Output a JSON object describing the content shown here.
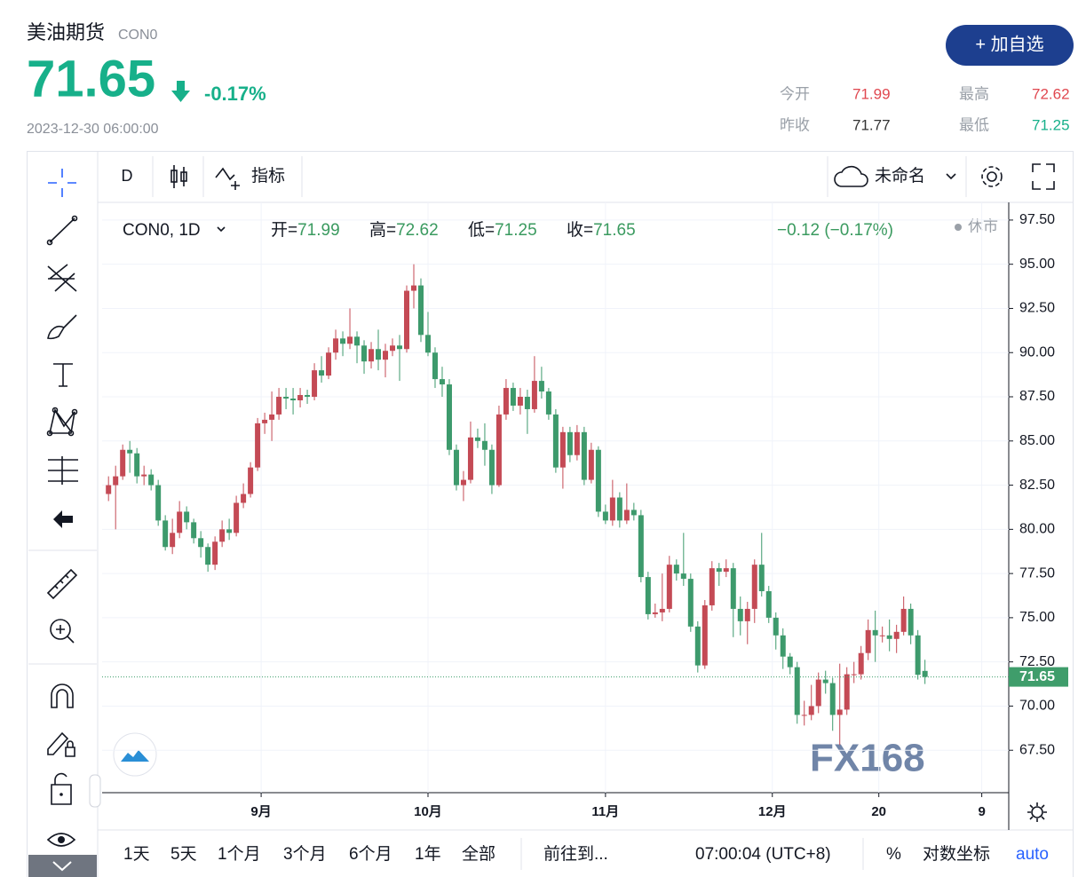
{
  "header": {
    "name": "美油期货",
    "code": "CON0",
    "price": "71.65",
    "change": "-0.17%",
    "time": "2023-12-30 06:00:00",
    "button": "+ 加自选",
    "stats": [
      {
        "label": "今开",
        "value": "71.99"
      },
      {
        "label": "最高",
        "value": "72.62"
      },
      {
        "label": "昨收",
        "value": "71.77"
      },
      {
        "label": "最低",
        "value": "71.25"
      }
    ]
  },
  "toolbar": {
    "interval": "D",
    "indicators": "指标",
    "layout": "未命名"
  },
  "chart_data": {
    "type": "candlestick",
    "symbol": "CON0, 1D",
    "legend": [
      {
        "label": "开=",
        "value": "71.99"
      },
      {
        "label": "高=",
        "value": "72.62"
      },
      {
        "label": "低=",
        "value": "71.25"
      },
      {
        "label": "收=",
        "value": "71.65"
      }
    ],
    "change": "−0.12 (−0.17%)",
    "status": "休市",
    "watermark": "FX168",
    "open": [
      82.0,
      82.5,
      83.0,
      84.5,
      84.3,
      83.0,
      83.1,
      82.5,
      80.5,
      79.0,
      79.8,
      81.0,
      80.4,
      79.5,
      79.0,
      78.0,
      79.3,
      80.0,
      79.8,
      81.5,
      82.0,
      83.5,
      86.0,
      86.2,
      86.5,
      87.5,
      87.4,
      87.3,
      87.6,
      87.5,
      89.0,
      88.7,
      90.0,
      90.8,
      90.5,
      90.9,
      90.4,
      89.5,
      90.2,
      89.6,
      90.1,
      90.4,
      90.2,
      93.5,
      93.8,
      91.0,
      90.0,
      88.5,
      88.2,
      84.5,
      82.5,
      82.8,
      85.2,
      85.0,
      84.5,
      82.5,
      86.5,
      88.0,
      87.0,
      87.5,
      86.8,
      88.4,
      87.8,
      86.5,
      83.5,
      85.5,
      84.2,
      85.5,
      82.8,
      84.5,
      81.0,
      80.5,
      81.8,
      80.5,
      81.1,
      80.8,
      77.3,
      75.2,
      75.3,
      75.5,
      78.0,
      77.5,
      77.2,
      74.5,
      72.3,
      75.7,
      77.8,
      77.6,
      77.8,
      75.5,
      74.8,
      75.5,
      78.0,
      76.5,
      75.0,
      74.0,
      72.8,
      72.2,
      69.5,
      69.5,
      70.0,
      71.5,
      71.3,
      69.5,
      69.8,
      71.8,
      71.8,
      73.0,
      74.3,
      74.0,
      74.0,
      73.8,
      74.2,
      75.5,
      74.0,
      71.99
    ],
    "high": [
      83.0,
      83.6,
      84.8,
      85.0,
      84.6,
      83.6,
      83.4,
      82.8,
      80.8,
      80.6,
      81.6,
      81.3,
      80.6,
      79.9,
      79.2,
      79.6,
      80.5,
      80.6,
      81.9,
      82.6,
      83.8,
      86.3,
      86.6,
      87.8,
      88.0,
      88.0,
      88.0,
      88.0,
      87.9,
      89.4,
      89.8,
      90.3,
      91.3,
      91.2,
      92.5,
      91.2,
      90.7,
      90.6,
      91.3,
      90.5,
      90.8,
      91.0,
      93.8,
      95.0,
      94.2,
      92.3,
      90.3,
      89.2,
      88.5,
      84.8,
      83.3,
      86.1,
      85.7,
      86.0,
      84.8,
      87.0,
      88.5,
      88.3,
      88.0,
      87.9,
      89.8,
      89.2,
      88.0,
      86.8,
      85.8,
      85.8,
      85.9,
      85.8,
      84.9,
      84.7,
      81.4,
      82.8,
      82.1,
      82.6,
      81.5,
      81.1,
      77.6,
      75.8,
      77.5,
      78.5,
      78.3,
      79.8,
      77.5,
      74.8,
      76.0,
      78.2,
      78.1,
      78.3,
      78.1,
      76.2,
      75.9,
      78.3,
      79.8,
      76.8,
      75.3,
      74.4,
      73.0,
      72.5,
      70.3,
      71.2,
      71.9,
      72.0,
      71.6,
      72.4,
      72.2,
      72.5,
      73.4,
      74.9,
      75.4,
      74.5,
      74.9,
      74.6,
      76.2,
      75.8,
      74.3,
      72.62
    ],
    "low": [
      81.6,
      80.0,
      82.8,
      83.2,
      82.6,
      82.5,
      82.2,
      80.2,
      78.8,
      78.6,
      79.5,
      80.0,
      79.2,
      78.4,
      77.6,
      77.7,
      79.0,
      79.4,
      79.6,
      81.2,
      81.8,
      83.3,
      85.4,
      85.0,
      86.2,
      86.8,
      86.5,
      86.9,
      87.1,
      87.3,
      88.3,
      88.5,
      89.6,
      89.8,
      90.2,
      89.4,
      88.8,
      89.1,
      89.0,
      88.6,
      89.8,
      88.4,
      90.0,
      92.5,
      90.6,
      89.8,
      88.0,
      87.5,
      84.2,
      82.2,
      81.6,
      82.6,
      84.6,
      83.6,
      82.0,
      82.4,
      86.2,
      86.7,
      86.5,
      85.4,
      86.6,
      87.4,
      86.2,
      83.2,
      82.3,
      83.8,
      83.9,
      82.5,
      82.6,
      80.7,
      80.3,
      80.2,
      80.1,
      80.3,
      80.5,
      77.0,
      74.9,
      75.0,
      74.8,
      75.3,
      77.1,
      76.8,
      74.2,
      71.9,
      72.1,
      75.4,
      76.8,
      77.3,
      73.9,
      74.0,
      73.5,
      74.7,
      76.2,
      74.7,
      73.2,
      72.1,
      71.8,
      69.0,
      68.9,
      69.2,
      69.6,
      70.7,
      68.6,
      67.8,
      69.5,
      71.3,
      71.5,
      72.6,
      72.5,
      73.6,
      73.1,
      73.0,
      74.0,
      73.5,
      71.5,
      71.25
    ],
    "close": [
      82.5,
      83.0,
      84.5,
      84.3,
      83.0,
      83.1,
      82.5,
      80.5,
      79.0,
      79.8,
      81.0,
      80.4,
      79.5,
      79.0,
      78.0,
      79.3,
      80.0,
      79.8,
      81.5,
      82.0,
      83.5,
      86.0,
      86.2,
      86.5,
      87.5,
      87.4,
      87.3,
      87.6,
      87.5,
      89.0,
      88.7,
      90.0,
      90.8,
      90.5,
      90.9,
      90.4,
      89.5,
      90.2,
      89.6,
      90.1,
      90.4,
      90.2,
      93.5,
      93.8,
      91.0,
      90.0,
      88.5,
      88.2,
      84.5,
      82.5,
      82.8,
      85.2,
      85.0,
      84.5,
      82.5,
      86.5,
      88.0,
      87.0,
      87.5,
      86.8,
      88.4,
      87.8,
      86.5,
      83.5,
      85.5,
      84.2,
      85.5,
      82.8,
      84.5,
      81.0,
      80.5,
      81.8,
      80.5,
      81.1,
      80.8,
      77.3,
      75.2,
      75.3,
      75.5,
      78.0,
      77.5,
      77.2,
      74.5,
      72.3,
      75.7,
      77.8,
      77.6,
      77.8,
      75.5,
      74.8,
      75.5,
      78.0,
      76.5,
      75.0,
      74.0,
      72.8,
      72.2,
      69.5,
      69.5,
      70.0,
      71.5,
      71.3,
      69.5,
      69.8,
      71.8,
      71.8,
      73.0,
      74.3,
      74.0,
      74.0,
      73.8,
      74.2,
      75.5,
      74.0,
      71.77,
      71.65
    ],
    "up_color": "#c44a55",
    "down_color": "#3d9a6c",
    "xlim": [
      -0.9,
      126.8
    ],
    "xticks": [
      {
        "value": 21.5,
        "label": "9月"
      },
      {
        "value": 45,
        "label": "10月"
      },
      {
        "value": 70,
        "label": "11月"
      },
      {
        "value": 93.5,
        "label": "12月"
      },
      {
        "value": 108.5,
        "label": "20"
      },
      {
        "value": 123,
        "label": "9"
      }
    ],
    "ylim": [
      65.1,
      98.5
    ],
    "yticks": [
      {
        "value": 67.5,
        "label": "67.50"
      },
      {
        "value": 70,
        "label": "70.00"
      },
      {
        "value": 72.5,
        "label": "72.50"
      },
      {
        "value": 75,
        "label": "75.00"
      },
      {
        "value": 77.5,
        "label": "77.50"
      },
      {
        "value": 80,
        "label": "80.00"
      },
      {
        "value": 82.5,
        "label": "82.50"
      },
      {
        "value": 85,
        "label": "85.00"
      },
      {
        "value": 87.5,
        "label": "87.50"
      },
      {
        "value": 90,
        "label": "90.00"
      },
      {
        "value": 92.5,
        "label": "92.50"
      },
      {
        "value": 95,
        "label": "95.00"
      },
      {
        "value": 97.5,
        "label": "97.50"
      }
    ],
    "last_price": 71.65,
    "last_price_color": "#3f9d6b",
    "grid": true
  },
  "bottom_bar": {
    "ranges": [
      "1天",
      "5天",
      "1个月",
      "3个月",
      "6个月",
      "1年",
      "全部"
    ],
    "goto": "前往到...",
    "clock": "07:00:04 (UTC+8)",
    "percent": "%",
    "log": "对数坐标",
    "auto": "auto"
  }
}
